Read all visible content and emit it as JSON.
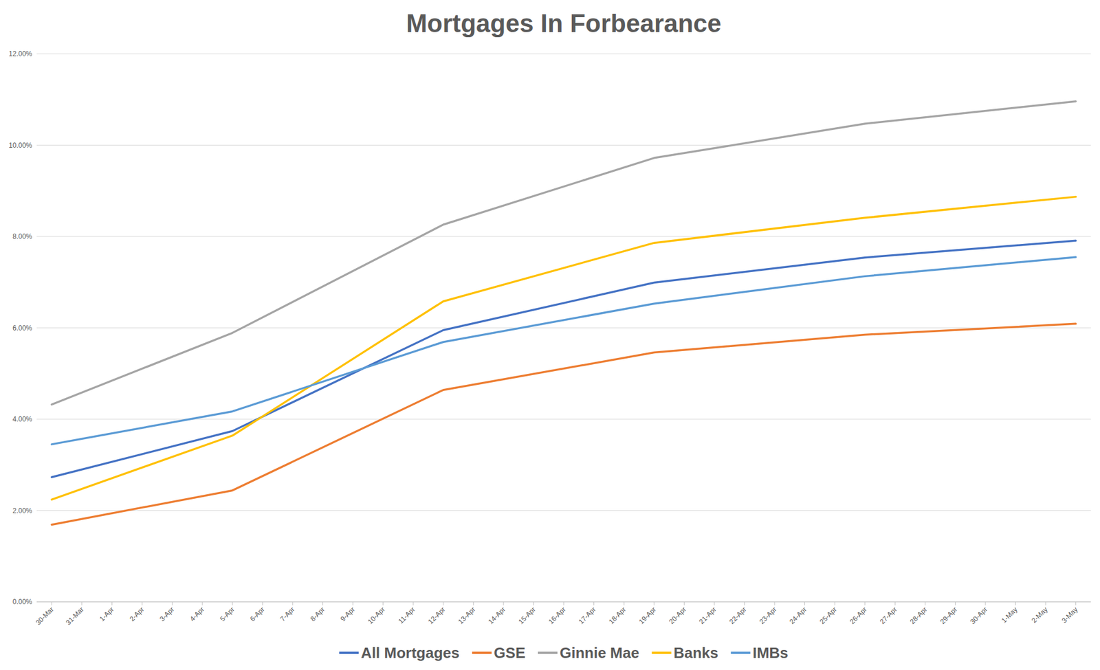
{
  "chart_data": {
    "type": "line",
    "title": "Mortgages In Forbearance",
    "xticks": [
      "30-Mar",
      "31-Mar",
      "1-Apr",
      "2-Apr",
      "3-Apr",
      "4-Apr",
      "5-Apr",
      "6-Apr",
      "7-Apr",
      "8-Apr",
      "9-Apr",
      "10-Apr",
      "11-Apr",
      "12-Apr",
      "13-Apr",
      "14-Apr",
      "15-Apr",
      "16-Apr",
      "17-Apr",
      "18-Apr",
      "19-Apr",
      "20-Apr",
      "21-Apr",
      "22-Apr",
      "23-Apr",
      "24-Apr",
      "25-Apr",
      "26-Apr",
      "27-Apr",
      "28-Apr",
      "29-Apr",
      "30-Apr",
      "1-May",
      "2-May",
      "3-May"
    ],
    "x": [
      "30-Mar",
      "5-Apr",
      "12-Apr",
      "19-Apr",
      "26-Apr",
      "3-May"
    ],
    "series": [
      {
        "name": "All Mortgages",
        "color": "#4472c4",
        "values": [
          2.73,
          3.74,
          5.95,
          6.99,
          7.54,
          7.91
        ]
      },
      {
        "name": "GSE",
        "color": "#ed7d31",
        "values": [
          1.69,
          2.44,
          4.64,
          5.46,
          5.85,
          6.09
        ]
      },
      {
        "name": "Ginnie Mae",
        "color": "#a5a5a5",
        "values": [
          4.32,
          5.89,
          8.26,
          9.72,
          10.47,
          10.96
        ]
      },
      {
        "name": "Banks",
        "color": "#ffc000",
        "values": [
          2.24,
          3.64,
          6.58,
          7.86,
          8.41,
          8.87
        ]
      },
      {
        "name": "IMBs",
        "color": "#5b9bd5",
        "values": [
          3.45,
          4.17,
          5.69,
          6.53,
          7.13,
          7.55
        ]
      }
    ],
    "ylim": [
      0,
      12
    ],
    "yticks": [
      {
        "value": 0,
        "label": "0.00%"
      },
      {
        "value": 2,
        "label": "2.00%"
      },
      {
        "value": 4,
        "label": "4.00%"
      },
      {
        "value": 6,
        "label": "6.00%"
      },
      {
        "value": 8,
        "label": "8.00%"
      },
      {
        "value": 10,
        "label": "10.00%"
      },
      {
        "value": 12,
        "label": "12.00%"
      }
    ],
    "grid": true,
    "legend": "bottom"
  }
}
